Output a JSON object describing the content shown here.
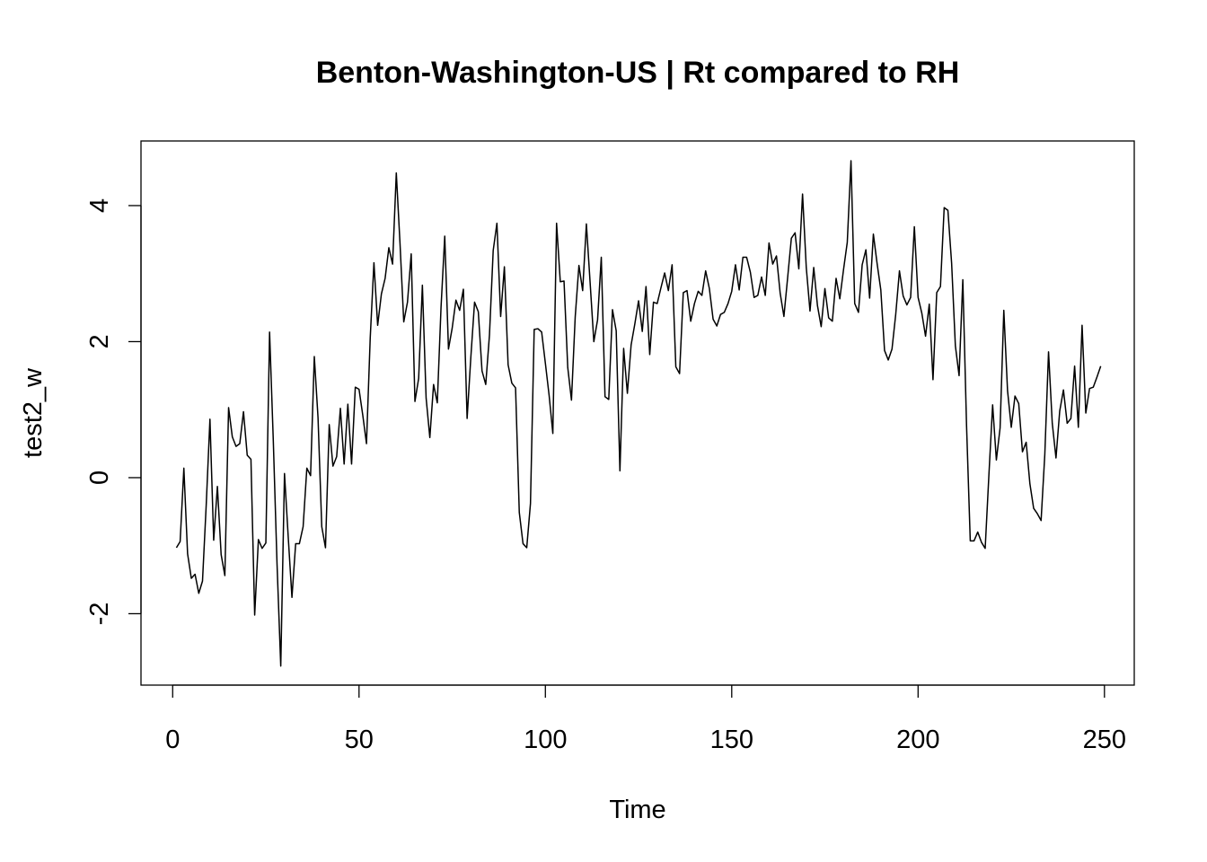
{
  "chart_data": {
    "type": "line",
    "title": "Benton-Washington-US | Rt compared to RH",
    "xlabel": "Time",
    "ylabel": "test2_w",
    "xlim": [
      -8.5,
      258
    ],
    "ylim": [
      -3.05,
      4.95
    ],
    "x_ticks": [
      0,
      50,
      100,
      150,
      200,
      250
    ],
    "y_ticks": [
      -2,
      0,
      2,
      4
    ],
    "grid": false,
    "series": [
      {
        "color": "#000000",
        "x_start": 1,
        "values": [
          -1.03,
          -0.94,
          0.14,
          -1.12,
          -1.48,
          -1.42,
          -1.7,
          -1.52,
          -0.4,
          0.86,
          -0.92,
          -0.13,
          -1.13,
          -1.44,
          1.03,
          0.6,
          0.46,
          0.5,
          0.97,
          0.33,
          0.27,
          -2.02,
          -0.91,
          -1.04,
          -0.96,
          2.14,
          0.54,
          -1.27,
          -2.77,
          0.06,
          -0.87,
          -1.76,
          -0.97,
          -0.97,
          -0.72,
          0.14,
          0.03,
          1.78,
          0.88,
          -0.72,
          -1.03,
          0.78,
          0.17,
          0.31,
          1.02,
          0.2,
          1.08,
          0.2,
          1.33,
          1.3,
          0.92,
          0.5,
          2.05,
          3.16,
          2.24,
          2.7,
          2.93,
          3.38,
          3.14,
          4.48,
          3.44,
          2.29,
          2.58,
          3.29,
          1.12,
          1.46,
          2.83,
          1.17,
          0.59,
          1.37,
          1.1,
          2.5,
          3.55,
          1.89,
          2.2,
          2.61,
          2.46,
          2.77,
          0.87,
          1.77,
          2.58,
          2.44,
          1.57,
          1.37,
          2.1,
          3.34,
          3.74,
          2.37,
          3.1,
          1.66,
          1.39,
          1.32,
          -0.51,
          -0.97,
          -1.03,
          -0.38,
          2.18,
          2.19,
          2.14,
          1.68,
          1.21,
          0.65,
          3.74,
          2.88,
          2.89,
          1.62,
          1.14,
          2.36,
          3.12,
          2.75,
          3.73,
          2.87,
          2.0,
          2.32,
          3.24,
          1.19,
          1.15,
          2.47,
          2.16,
          0.1,
          1.9,
          1.24,
          1.95,
          2.26,
          2.6,
          2.15,
          2.81,
          1.81,
          2.58,
          2.56,
          2.79,
          3.01,
          2.75,
          3.13,
          1.63,
          1.53,
          2.72,
          2.75,
          2.3,
          2.56,
          2.74,
          2.68,
          3.04,
          2.78,
          2.33,
          2.23,
          2.4,
          2.43,
          2.56,
          2.74,
          3.13,
          2.76,
          3.24,
          3.24,
          3.02,
          2.65,
          2.68,
          2.95,
          2.68,
          3.45,
          3.14,
          3.26,
          2.71,
          2.37,
          2.94,
          3.52,
          3.6,
          3.07,
          4.17,
          3.09,
          2.45,
          3.09,
          2.53,
          2.22,
          2.78,
          2.35,
          2.3,
          2.93,
          2.63,
          3.06,
          3.46,
          4.66,
          2.56,
          2.43,
          3.13,
          3.35,
          2.64,
          3.58,
          3.15,
          2.76,
          1.87,
          1.73,
          1.89,
          2.4,
          3.04,
          2.67,
          2.54,
          2.65,
          3.69,
          2.65,
          2.42,
          2.08,
          2.55,
          1.44,
          2.72,
          2.81,
          3.97,
          3.93,
          3.15,
          1.94,
          1.5,
          2.91,
          0.77,
          -0.93,
          -0.93,
          -0.8,
          -0.95,
          -1.04,
          0.04,
          1.07,
          0.26,
          0.73,
          2.46,
          1.28,
          0.74,
          1.2,
          1.09,
          0.38,
          0.52,
          -0.09,
          -0.45,
          -0.53,
          -0.63,
          0.34,
          1.85,
          0.8,
          0.29,
          0.98,
          1.29,
          0.8,
          0.87,
          1.64,
          0.74,
          2.24,
          0.95,
          1.31,
          1.33,
          1.48,
          1.64
        ]
      }
    ]
  }
}
